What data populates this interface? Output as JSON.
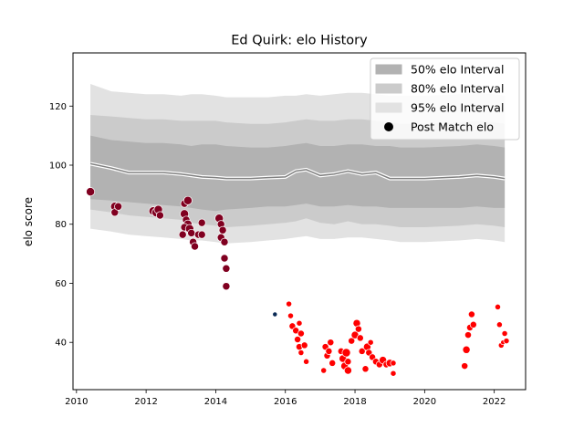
{
  "chart_data": {
    "type": "scatter",
    "title": "Ed Quirk: elo History",
    "xlabel": "",
    "ylabel": "elo score",
    "xlim": [
      2009.9,
      2022.9
    ],
    "ylim": [
      24,
      138
    ],
    "x_ticks": [
      2010,
      2012,
      2014,
      2016,
      2018,
      2020,
      2022
    ],
    "y_ticks": [
      40,
      60,
      80,
      100,
      120
    ],
    "legend": {
      "position": "top-right",
      "entries": [
        "50% elo Interval",
        "80% elo Interval",
        "95% elo Interval",
        "Post Match elo"
      ]
    },
    "colors": {
      "band95": "#e2e2e2",
      "band80": "#cbcbcb",
      "band50": "#b2b2b2",
      "median": "#808080",
      "median_halo": "#ffffff",
      "early_points": "#800020",
      "mid_point": "#0a2a55",
      "late_points": "#ff0000",
      "legend_marker": "#000000"
    },
    "intervals": {
      "x": [
        2010.4,
        2011.0,
        2011.5,
        2012.0,
        2012.5,
        2013.0,
        2013.3,
        2013.6,
        2014.0,
        2014.3,
        2015.0,
        2015.5,
        2016.0,
        2016.3,
        2016.6,
        2017.0,
        2017.4,
        2017.8,
        2018.2,
        2018.6,
        2019.0,
        2019.3,
        2020.0,
        2021.0,
        2021.5,
        2022.0,
        2022.3
      ],
      "median": [
        100.5,
        99.0,
        97.5,
        97.5,
        97.5,
        97.0,
        96.5,
        96.0,
        95.8,
        95.5,
        95.5,
        95.8,
        96.0,
        98.0,
        98.5,
        96.5,
        97.0,
        98.0,
        97.0,
        97.5,
        95.5,
        95.5,
        95.5,
        96.0,
        96.5,
        96.0,
        95.5
      ],
      "p50_low": [
        88.5,
        88.0,
        87.5,
        87.0,
        86.5,
        86.0,
        85.5,
        85.0,
        84.5,
        85.0,
        85.5,
        86.0,
        86.0,
        86.5,
        87.0,
        86.0,
        86.0,
        86.5,
        86.0,
        86.0,
        85.5,
        85.5,
        85.5,
        85.5,
        86.0,
        85.5,
        85.5
      ],
      "p50_high": [
        110.0,
        108.5,
        108.0,
        107.5,
        107.5,
        107.0,
        106.5,
        107.0,
        107.0,
        106.5,
        106.0,
        106.0,
        106.5,
        107.0,
        107.5,
        106.5,
        106.5,
        107.0,
        107.0,
        106.5,
        106.5,
        106.0,
        106.0,
        106.5,
        107.0,
        106.5,
        106.0
      ],
      "p80_low": [
        85.0,
        84.0,
        83.0,
        82.5,
        82.0,
        81.5,
        80.5,
        80.0,
        79.5,
        79.0,
        79.5,
        80.0,
        80.5,
        81.0,
        82.0,
        80.5,
        80.0,
        81.0,
        80.0,
        80.0,
        79.5,
        79.0,
        79.0,
        79.5,
        80.0,
        79.5,
        79.0
      ],
      "p80_high": [
        117.0,
        116.5,
        116.0,
        115.5,
        115.5,
        115.0,
        115.0,
        115.0,
        115.0,
        114.5,
        114.0,
        114.0,
        114.5,
        115.0,
        115.5,
        115.0,
        115.0,
        115.5,
        115.5,
        115.0,
        114.5,
        114.0,
        114.0,
        114.5,
        115.0,
        114.5,
        114.0
      ],
      "p95_low": [
        78.5,
        77.5,
        76.5,
        76.0,
        75.5,
        75.0,
        74.5,
        74.5,
        74.0,
        73.5,
        74.0,
        74.5,
        75.0,
        75.5,
        76.0,
        75.0,
        75.0,
        75.5,
        75.5,
        75.0,
        74.5,
        74.0,
        74.0,
        74.5,
        75.0,
        74.5,
        74.0
      ],
      "p95_high": [
        127.5,
        125.0,
        124.5,
        124.0,
        124.0,
        123.5,
        124.0,
        124.0,
        123.5,
        123.0,
        123.0,
        123.0,
        123.5,
        123.5,
        124.0,
        123.5,
        124.0,
        124.5,
        124.5,
        124.0,
        123.5,
        123.5,
        123.5,
        124.0,
        124.5,
        124.0,
        123.5
      ]
    },
    "series": [
      {
        "group": "early",
        "points": [
          [
            2010.4,
            91.0,
            8
          ],
          [
            2011.1,
            86.0,
            8
          ],
          [
            2011.1,
            84.0,
            7
          ],
          [
            2011.2,
            86.0,
            7
          ],
          [
            2012.2,
            84.5,
            8
          ],
          [
            2012.3,
            84.0,
            9
          ],
          [
            2012.35,
            85.0,
            8
          ],
          [
            2012.4,
            83.0,
            7
          ],
          [
            2013.1,
            87.0,
            7
          ],
          [
            2013.2,
            88.0,
            8
          ],
          [
            2013.1,
            83.5,
            8
          ],
          [
            2013.15,
            81.5,
            7
          ],
          [
            2013.2,
            80.0,
            8
          ],
          [
            2013.1,
            79.0,
            7
          ],
          [
            2013.05,
            76.5,
            7
          ],
          [
            2013.25,
            78.5,
            8
          ],
          [
            2013.3,
            77.0,
            7
          ],
          [
            2013.35,
            74.0,
            7
          ],
          [
            2013.4,
            72.5,
            7
          ],
          [
            2013.5,
            76.5,
            7
          ],
          [
            2013.6,
            80.5,
            7
          ],
          [
            2013.6,
            76.5,
            7
          ],
          [
            2014.1,
            82.0,
            8
          ],
          [
            2014.15,
            80.0,
            7
          ],
          [
            2014.2,
            78.0,
            7
          ],
          [
            2014.15,
            75.5,
            7
          ],
          [
            2014.25,
            74.0,
            7
          ],
          [
            2014.25,
            68.5,
            7
          ],
          [
            2014.3,
            65.0,
            7
          ],
          [
            2014.3,
            59.0,
            7
          ]
        ]
      },
      {
        "group": "mid",
        "points": [
          [
            2015.7,
            49.5,
            4
          ]
        ]
      },
      {
        "group": "late",
        "points": [
          [
            2016.1,
            53.0,
            5
          ],
          [
            2016.15,
            49.0,
            5
          ],
          [
            2016.2,
            45.5,
            6
          ],
          [
            2016.3,
            44.0,
            6
          ],
          [
            2016.35,
            41.0,
            6
          ],
          [
            2016.4,
            38.5,
            6
          ],
          [
            2016.45,
            36.5,
            5
          ],
          [
            2016.4,
            46.5,
            5
          ],
          [
            2016.45,
            43.0,
            6
          ],
          [
            2016.55,
            39.0,
            6
          ],
          [
            2016.6,
            33.5,
            5
          ],
          [
            2017.1,
            30.5,
            5
          ],
          [
            2017.15,
            38.5,
            6
          ],
          [
            2017.2,
            35.5,
            6
          ],
          [
            2017.25,
            37.0,
            6
          ],
          [
            2017.3,
            40.0,
            6
          ],
          [
            2017.35,
            33.0,
            6
          ],
          [
            2017.6,
            37.0,
            6
          ],
          [
            2017.65,
            34.5,
            7
          ],
          [
            2017.7,
            32.0,
            7
          ],
          [
            2017.75,
            36.5,
            8
          ],
          [
            2017.8,
            30.5,
            7
          ],
          [
            2017.8,
            33.5,
            6
          ],
          [
            2017.9,
            40.5,
            6
          ],
          [
            2018.0,
            42.5,
            7
          ],
          [
            2018.05,
            46.5,
            7
          ],
          [
            2018.1,
            44.5,
            6
          ],
          [
            2018.15,
            41.5,
            6
          ],
          [
            2018.2,
            37.0,
            6
          ],
          [
            2018.3,
            31.0,
            6
          ],
          [
            2018.35,
            38.5,
            7
          ],
          [
            2018.4,
            36.5,
            6
          ],
          [
            2018.45,
            40.0,
            5
          ],
          [
            2018.5,
            35.0,
            6
          ],
          [
            2018.6,
            33.5,
            6
          ],
          [
            2018.7,
            32.5,
            6
          ],
          [
            2018.8,
            34.0,
            7
          ],
          [
            2018.9,
            32.5,
            6
          ],
          [
            2019.0,
            33.0,
            7
          ],
          [
            2019.1,
            29.5,
            5
          ],
          [
            2019.1,
            33.0,
            5
          ],
          [
            2021.15,
            32.0,
            6
          ],
          [
            2021.2,
            37.5,
            7
          ],
          [
            2021.25,
            42.5,
            6
          ],
          [
            2021.3,
            45.0,
            6
          ],
          [
            2021.35,
            49.5,
            6
          ],
          [
            2021.4,
            46.0,
            6
          ],
          [
            2022.1,
            52.0,
            5
          ],
          [
            2022.15,
            46.0,
            5
          ],
          [
            2022.2,
            39.0,
            5
          ],
          [
            2022.25,
            40.0,
            4
          ],
          [
            2022.3,
            43.0,
            5
          ],
          [
            2022.35,
            40.5,
            5
          ]
        ]
      }
    ]
  }
}
